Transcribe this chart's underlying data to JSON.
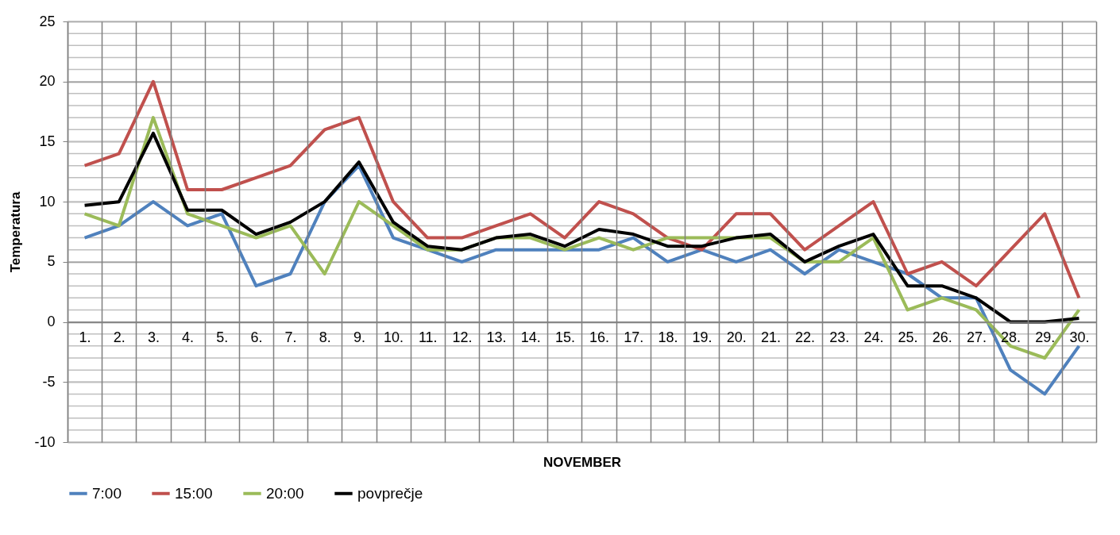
{
  "chart_data": {
    "type": "line",
    "xlabel": "NOVEMBER",
    "ylabel": "Temperatura",
    "categories": [
      "1.",
      "2.",
      "3.",
      "4.",
      "5.",
      "6.",
      "7.",
      "8.",
      "9.",
      "10.",
      "11.",
      "12.",
      "13.",
      "14.",
      "15.",
      "16.",
      "17.",
      "18.",
      "19.",
      "20.",
      "21.",
      "22.",
      "23.",
      "24.",
      "25.",
      "26.",
      "27.",
      "28.",
      "29.",
      "30."
    ],
    "series": [
      {
        "name": "7:00",
        "color": "#4f81bd",
        "values": [
          7,
          8,
          10,
          8,
          9,
          3,
          4,
          10,
          13,
          7,
          6,
          5,
          6,
          6,
          6,
          6,
          7,
          5,
          6,
          5,
          6,
          4,
          6,
          5,
          4,
          2,
          2,
          -4,
          -6,
          -2
        ]
      },
      {
        "name": "15:00",
        "color": "#c0504d",
        "values": [
          13,
          14,
          20,
          11,
          11,
          12,
          13,
          16,
          17,
          10,
          7,
          7,
          8,
          9,
          7,
          10,
          9,
          7,
          6,
          9,
          9,
          6,
          8,
          10,
          4,
          5,
          3,
          6,
          9,
          2
        ]
      },
      {
        "name": "20:00",
        "color": "#9bbb59",
        "values": [
          9,
          8,
          17,
          9,
          8,
          7,
          8,
          4,
          10,
          8,
          6,
          6,
          7,
          7,
          6,
          7,
          6,
          7,
          7,
          7,
          7,
          5,
          5,
          7,
          1,
          2,
          1,
          -2,
          -3,
          1
        ]
      },
      {
        "name": "povprečje",
        "color": "#000000",
        "values": [
          9.7,
          10,
          15.7,
          9.3,
          9.3,
          7.3,
          8.3,
          10,
          13.3,
          8.3,
          6.3,
          6,
          7,
          7.3,
          6.3,
          7.7,
          7.3,
          6.3,
          6.3,
          7,
          7.3,
          5,
          6.3,
          7.3,
          3,
          3,
          2,
          0,
          0,
          0.3
        ]
      }
    ],
    "ylim": [
      -10,
      25
    ],
    "yticks": [
      -10,
      -5,
      0,
      5,
      10,
      15,
      20,
      25
    ],
    "grid": true,
    "legend": "bottom",
    "marker": "none",
    "line_style": "solid"
  }
}
